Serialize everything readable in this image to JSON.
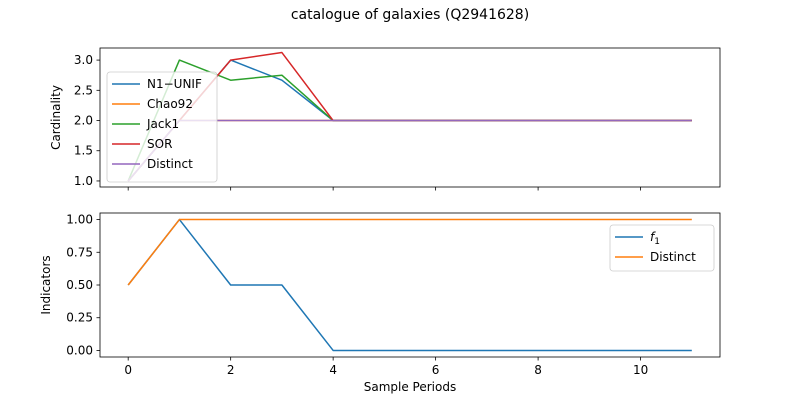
{
  "figure": {
    "title": "catalogue of galaxies (Q2941628)"
  },
  "chart_data": [
    {
      "type": "line",
      "ylabel": "Cardinality",
      "xlabel": "",
      "xlim": [
        -0.55,
        11.55
      ],
      "ylim": [
        0.9,
        3.2
      ],
      "yticks": [
        1.0,
        1.5,
        2.0,
        2.5,
        3.0
      ],
      "ytick_labels": [
        "1.0",
        "1.5",
        "2.0",
        "2.5",
        "3.0"
      ],
      "xticks": [
        0,
        2,
        4,
        6,
        8,
        10
      ],
      "show_x_tick_labels": false,
      "grid": false,
      "legend": "upper-left",
      "x": [
        0,
        1,
        2,
        3,
        4,
        5,
        6,
        7,
        8,
        9,
        10,
        11
      ],
      "series": [
        {
          "name": "N1−UNIF",
          "color": "#1f77b4",
          "values": [
            1,
            2,
            3.0,
            2.667,
            2,
            2,
            2,
            2,
            2,
            2,
            2,
            2
          ]
        },
        {
          "name": "Chao92",
          "color": "#ff7f0e",
          "values": [
            1,
            2,
            2,
            2,
            2,
            2,
            2,
            2,
            2,
            2,
            2,
            2
          ]
        },
        {
          "name": "Jack1",
          "color": "#2ca02c",
          "values": [
            1,
            3.0,
            2.667,
            2.75,
            2,
            2,
            2,
            2,
            2,
            2,
            2,
            2
          ]
        },
        {
          "name": "SOR",
          "color": "#d62728",
          "values": [
            1,
            2,
            3.0,
            3.125,
            2,
            2,
            2,
            2,
            2,
            2,
            2,
            2
          ]
        },
        {
          "name": "Distinct",
          "color": "#9467bd",
          "values": [
            1,
            2,
            2,
            2,
            2,
            2,
            2,
            2,
            2,
            2,
            2,
            2
          ]
        }
      ]
    },
    {
      "type": "line",
      "ylabel": "Indicators",
      "xlabel": "Sample Periods",
      "xlim": [
        -0.55,
        11.55
      ],
      "ylim": [
        -0.05,
        1.05
      ],
      "yticks": [
        0.0,
        0.25,
        0.5,
        0.75,
        1.0
      ],
      "ytick_labels": [
        "0.00",
        "0.25",
        "0.50",
        "0.75",
        "1.00"
      ],
      "xticks": [
        0,
        2,
        4,
        6,
        8,
        10
      ],
      "xtick_labels": [
        "0",
        "2",
        "4",
        "6",
        "8",
        "10"
      ],
      "show_x_tick_labels": true,
      "grid": false,
      "legend": "upper-right",
      "x": [
        0,
        1,
        2,
        3,
        4,
        5,
        6,
        7,
        8,
        9,
        10,
        11
      ],
      "series": [
        {
          "name": "f",
          "name_subscript": "1",
          "color": "#1f77b4",
          "values": [
            0.5,
            1.0,
            0.5,
            0.5,
            0,
            0,
            0,
            0,
            0,
            0,
            0,
            0
          ]
        },
        {
          "name": "Distinct",
          "color": "#ff7f0e",
          "values": [
            0.5,
            1.0,
            1.0,
            1.0,
            1.0,
            1.0,
            1.0,
            1.0,
            1.0,
            1.0,
            1.0,
            1.0
          ]
        }
      ]
    }
  ]
}
